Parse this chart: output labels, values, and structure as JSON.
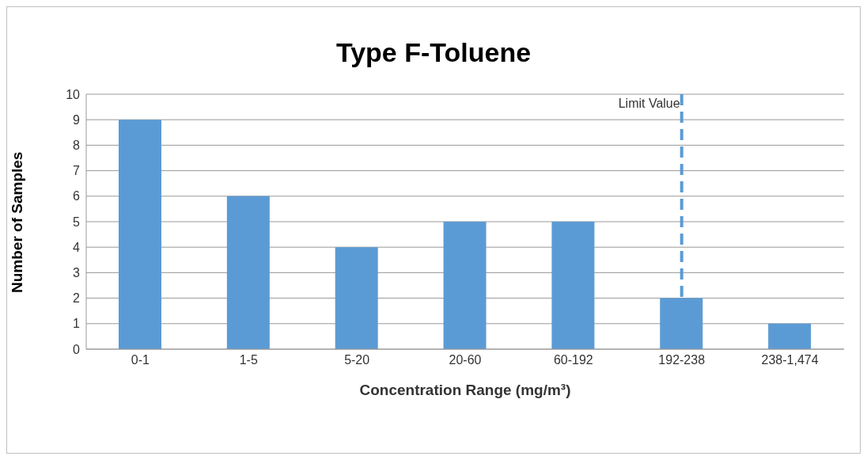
{
  "chart_data": {
    "type": "bar",
    "title": "Type F-Toluene",
    "xlabel": "Concentration Range (mg/m³)",
    "ylabel": "Number of Samples",
    "categories": [
      "0-1",
      "1-5",
      "5-20",
      "20-60",
      "60-192",
      "192-238",
      "238-1,474"
    ],
    "values": [
      9,
      6,
      4,
      5,
      5,
      2,
      1
    ],
    "color": "#5b9bd5",
    "ylim": [
      0,
      10
    ],
    "yticks": [
      0,
      1,
      2,
      3,
      4,
      5,
      6,
      7,
      8,
      9,
      10
    ],
    "grid": "y",
    "legend": false,
    "ref_lines": [
      {
        "axis": "x",
        "value": "192-238",
        "label": "Limit Value",
        "color": "#5b9bd5",
        "line_style": "dashed"
      }
    ]
  }
}
